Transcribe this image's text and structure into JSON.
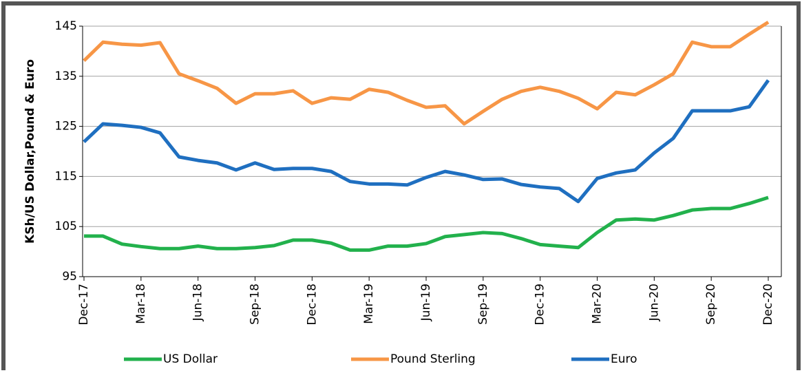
{
  "chart_data": {
    "type": "line",
    "y_label": "KSh/US  Dollar,Pound  & Euro",
    "categories": [
      "Dec-17",
      null,
      null,
      "Mar-18",
      null,
      null,
      "Jun-18",
      null,
      null,
      "Sep-18",
      null,
      null,
      "Dec-18",
      null,
      null,
      "Mar-19",
      null,
      null,
      "Jun-19",
      null,
      null,
      "Sep-19",
      null,
      null,
      "Dec-19",
      null,
      null,
      "Mar-20",
      null,
      null,
      "Jun-20",
      null,
      null,
      "Sep-20",
      null,
      null,
      "Dec-20"
    ],
    "series": [
      {
        "name": "US Dollar",
        "color": "#22b14c",
        "values": [
          103.1,
          103.1,
          101.5,
          101.0,
          100.6,
          100.6,
          101.1,
          100.6,
          100.6,
          100.8,
          101.2,
          102.3,
          102.3,
          101.7,
          100.3,
          100.3,
          101.1,
          101.1,
          101.6,
          103.0,
          103.4,
          103.8,
          103.6,
          102.6,
          101.4,
          101.1,
          100.8,
          103.8,
          106.3,
          106.5,
          106.3,
          107.2,
          108.3,
          108.6,
          108.6,
          109.6,
          110.8
        ]
      },
      {
        "name": "Pound Sterling",
        "color": "#f79646",
        "values": [
          138.1,
          141.8,
          141.4,
          141.2,
          141.7,
          135.5,
          134.1,
          132.6,
          129.6,
          131.5,
          131.5,
          132.1,
          129.6,
          130.7,
          130.4,
          132.4,
          131.8,
          130.2,
          128.8,
          129.1,
          125.5,
          128.0,
          130.4,
          132.0,
          132.8,
          132.0,
          130.6,
          128.5,
          131.8,
          131.3,
          133.3,
          135.5,
          141.8,
          140.9,
          140.9,
          143.4,
          145.8
        ]
      },
      {
        "name": "Euro",
        "color": "#1f6fc0",
        "values": [
          121.9,
          125.5,
          125.2,
          124.8,
          123.7,
          118.9,
          118.2,
          117.7,
          116.3,
          117.7,
          116.4,
          116.6,
          116.6,
          116.0,
          114.0,
          113.5,
          113.5,
          113.3,
          114.8,
          116.0,
          115.3,
          114.4,
          114.5,
          113.4,
          112.9,
          112.6,
          110.0,
          114.6,
          115.7,
          116.3,
          119.7,
          122.6,
          128.1,
          128.1,
          128.1,
          128.9,
          134.2
        ]
      }
    ],
    "ylim": [
      95,
      145
    ],
    "yticks": [
      95,
      105,
      115,
      125,
      135,
      145
    ],
    "grid": true
  }
}
